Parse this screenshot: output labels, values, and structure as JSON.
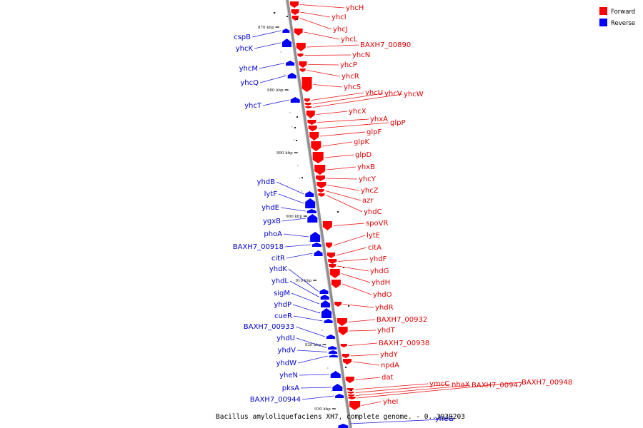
{
  "caption": "Bacillus amyloliquefaciens XH7, complete genome. - 0..3939203",
  "legend": {
    "forward_label": "Forward",
    "reverse_label": "Reverse",
    "forward_color": "#ff0000",
    "reverse_color": "#0000ff"
  },
  "axis_ticks": [
    "870 kbp",
    "880 kbp",
    "890 kbp",
    "900 kbp",
    "910 kbp",
    "920 kbp",
    "930 kbp"
  ],
  "forward_genes": [
    "yhcH",
    "yhcI",
    "yhcJ",
    "yhcL",
    "BAXH7_00890",
    "yhcN",
    "yhcP",
    "yhcR",
    "yhcS",
    "yhcU",
    "yhcV",
    "yhcW",
    "yhcX",
    "yhxA",
    "glpP",
    "glpF",
    "glpK",
    "glpD",
    "yhxB",
    "yhcY",
    "yhcZ",
    "azr",
    "yhdC",
    "spoVR",
    "lytE",
    "citA",
    "yhdF",
    "yhdG",
    "yhdH",
    "yhdO",
    "yhdR",
    "BAXH7_00932",
    "yhdT",
    "BAXH7_00938",
    "yhdY",
    "npdA",
    "dat",
    "ymcC",
    "nhaX",
    "BAXH7_00947",
    "BAXH7_00948",
    "yheI"
  ],
  "reverse_genes": [
    "cspB",
    "yhcK",
    "yhcM",
    "yhcQ",
    "yhcT",
    "yhdB",
    "lytF",
    "yhdE",
    "ygxB",
    "phoA",
    "BAXH7_00918",
    "citR",
    "yhdK",
    "yhdL",
    "sigM",
    "yhdP",
    "cueR",
    "BAXH7_00933",
    "yhdU",
    "yhdV",
    "yhdW",
    "yheN",
    "pksA",
    "BAXH7_00944",
    "yheG"
  ]
}
